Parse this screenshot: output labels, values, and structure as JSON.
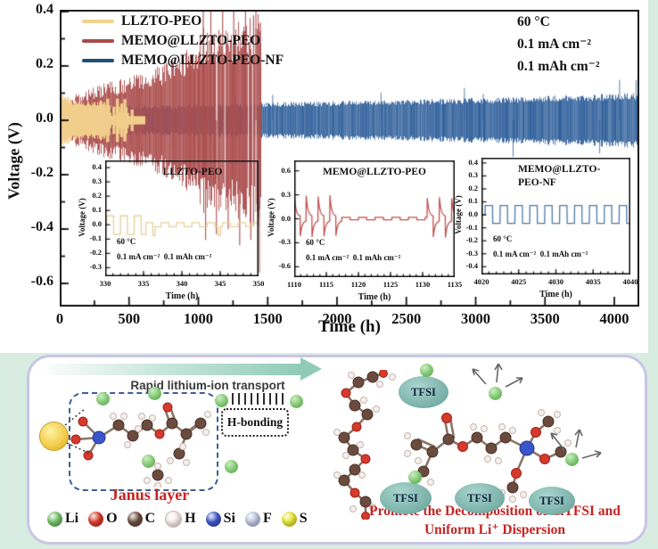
{
  "chart_data": [
    {
      "id": "main",
      "type": "line",
      "title": "",
      "xlabel": "Time (h)",
      "ylabel": "Voltage (V)",
      "xlim": [
        0,
        4180
      ],
      "ylim": [
        -0.685,
        0.407
      ],
      "xticks": [
        0,
        500,
        1000,
        1500,
        2000,
        2500,
        3000,
        3500,
        4000
      ],
      "yticks": [
        0.4,
        0.2,
        0,
        -0.2,
        -0.4,
        -0.6
      ],
      "legend_position": "top-left",
      "grid": false,
      "legend_colors": [
        "#F2D28F",
        "#A94A4A",
        "#1F4E79"
      ],
      "annotations": [
        "60 °C",
        "0.1 mA cm⁻²",
        "0.1 mAh cm⁻²"
      ],
      "series": [
        {
          "name": "LLZTO-PEO",
          "color": "#F1CE8C",
          "range": [
            0,
            615
          ],
          "envelope": [
            [
              0,
              0.095
            ],
            [
              40,
              0.078
            ],
            [
              120,
              0.062
            ],
            [
              220,
              0.06
            ],
            [
              300,
              0.066
            ],
            [
              332,
              0.062
            ],
            [
              336,
              0.016
            ],
            [
              395,
              0.016
            ],
            [
              410,
              0.03
            ],
            [
              465,
              0.03
            ],
            [
              480,
              0.016
            ],
            [
              615,
              0.015
            ]
          ],
          "bars": [
            [
              346,
              0.08
            ],
            [
              354,
              0.055
            ],
            [
              362,
              0.028
            ],
            [
              391,
              0.05
            ],
            [
              416,
              0.08
            ],
            [
              424,
              0.05
            ],
            [
              438,
              0.028
            ],
            [
              448,
              0.062
            ],
            [
              470,
              0.078
            ],
            [
              479,
              0.048
            ],
            [
              488,
              0.028
            ],
            [
              522,
              0.04
            ]
          ]
        },
        {
          "name": "MEMO@LLZTO-PEO",
          "color": "#AC4E4E",
          "range": [
            0,
            1452
          ],
          "envelope": [
            [
              0,
              0.05
            ],
            [
              100,
              0.075
            ],
            [
              200,
              0.09
            ],
            [
              300,
              0.105
            ],
            [
              400,
              0.115
            ],
            [
              500,
              0.125
            ],
            [
              600,
              0.14
            ],
            [
              700,
              0.155
            ],
            [
              800,
              0.17
            ],
            [
              900,
              0.195
            ],
            [
              950,
              0.22
            ],
            [
              1000,
              0.25
            ],
            [
              1040,
              0.27
            ],
            [
              1080,
              0.24
            ],
            [
              1120,
              0.27
            ],
            [
              1160,
              0.26
            ],
            [
              1200,
              0.285
            ],
            [
              1240,
              0.27
            ],
            [
              1300,
              0.3
            ],
            [
              1350,
              0.29
            ],
            [
              1400,
              0.31
            ],
            [
              1452,
              0.33
            ]
          ],
          "spikes": [
            [
              1035,
              0.42
            ],
            [
              1052,
              -0.44
            ],
            [
              1090,
              0.4
            ],
            [
              1130,
              -0.42
            ],
            [
              1175,
              0.43
            ],
            [
              1215,
              -0.4
            ],
            [
              1255,
              0.44
            ],
            [
              1298,
              -0.46
            ],
            [
              1340,
              0.42
            ],
            [
              1378,
              -0.44
            ],
            [
              1415,
              0.4
            ],
            [
              1440,
              -0.56
            ],
            [
              1448,
              0.36
            ]
          ],
          "gaps": [
            [
              1128,
              1136
            ],
            [
              1188,
              1194
            ],
            [
              1358,
              1364
            ],
            [
              1388,
              1394
            ],
            [
              1412,
              1418
            ]
          ]
        },
        {
          "name": "MEMO@LLZTO-PEO-NF",
          "color": "#2F5F9A",
          "range": [
            0,
            4178
          ],
          "envelope": [
            [
              0,
              0.04
            ],
            [
              400,
              0.045
            ],
            [
              800,
              0.05
            ],
            [
              1200,
              0.054
            ],
            [
              1500,
              0.057
            ],
            [
              2000,
              0.062
            ],
            [
              2500,
              0.067
            ],
            [
              3000,
              0.072
            ],
            [
              3500,
              0.079
            ],
            [
              4178,
              0.088
            ]
          ]
        }
      ]
    },
    {
      "id": "inset-llzto-peo",
      "type": "line",
      "title": "LLZTO-PEO",
      "xlabel": "Time (h)",
      "ylabel": "Voltage (V)",
      "xlim": [
        330,
        350
      ],
      "ylim": [
        -0.36,
        0.45
      ],
      "xticks": [
        330,
        335,
        340,
        345,
        350
      ],
      "yticks": [
        0.4,
        0.3,
        0.2,
        0.1,
        0,
        -0.1,
        -0.2,
        -0.3
      ],
      "color": "#E7D099",
      "annotation_lines": [
        "60 °C",
        "0.1 mA cm⁻²  0.1 mAh cm⁻²"
      ],
      "segments": [
        {
          "type": "square",
          "from": 330.2,
          "to": 335.3,
          "period": 1.8,
          "hi": 0.062,
          "lo": -0.068
        },
        {
          "type": "square",
          "from": 335.3,
          "to": 350,
          "period": 2.0,
          "hi": 0.015,
          "lo": -0.014
        },
        {
          "type": "dip",
          "at": [
            336.35,
            344.9
          ],
          "v": -0.075,
          "w": 0.3
        }
      ]
    },
    {
      "id": "inset-memo-llzto-peo",
      "type": "line",
      "title": "MEMO@LLZTO-PEO",
      "xlabel": "Time (h)",
      "ylabel": "Voltage (V)",
      "xlim": [
        1110,
        1135
      ],
      "ylim": [
        -0.73,
        0.73
      ],
      "xticks": [
        1110,
        1115,
        1120,
        1125,
        1130,
        1135
      ],
      "yticks": [
        0.6,
        0.3,
        0,
        -0.3,
        -0.6
      ],
      "color": "#C0504D",
      "annotation_lines": [
        "60 °C",
        "0.1 mA cm⁻²  0.1 mAh cm⁻²"
      ],
      "segments": [
        {
          "type": "decay",
          "from": 1110,
          "to": 1117.4,
          "period": 1.85,
          "peak": 0.3,
          "trough": -0.23
        },
        {
          "type": "square",
          "from": 1117.4,
          "to": 1130.7,
          "period": 2.6,
          "hi": 0.018,
          "lo": -0.012
        },
        {
          "type": "decay",
          "from": 1130.7,
          "to": 1135.01,
          "period": 1.9,
          "peak": 0.28,
          "trough": -0.24
        }
      ]
    },
    {
      "id": "inset-memo-llzto-peo-nf",
      "type": "line",
      "title": "MEMO@LLZTO-PEO-NF",
      "title_lines": [
        "MEMO@LLZTO-",
        "PEO-NF"
      ],
      "xlabel": "Time (h)",
      "ylabel": "Voltage (V)",
      "xlim": [
        4020,
        4040
      ],
      "ylim": [
        -0.46,
        0.44
      ],
      "xticks": [
        4020,
        4025,
        4030,
        4035,
        4040
      ],
      "yticks": [
        0.4,
        0.3,
        0.2,
        0.1,
        0,
        -0.1,
        -0.2,
        -0.3,
        -0.4
      ],
      "color": "#4F7AA5",
      "annotation_lines": [
        "60 °C",
        "0.1 mA cm⁻²  0.1 mAh cm⁻²"
      ],
      "segments": [
        {
          "type": "square",
          "from": 4020.5,
          "to": 4040,
          "period": 2.0,
          "hi": 0.072,
          "lo": -0.066
        }
      ]
    }
  ],
  "diagram": {
    "arrow_label": "Rapid lithium-ion transport",
    "hbonding_label": "H-bonding",
    "janus_label": "Janus layer",
    "tfsi_label": "TFSI",
    "promote_line1": "Promote the Decomposition of LiTFSI  and",
    "promote_line2": "Uniform Li⁺ Dispersion",
    "atom_legend": [
      {
        "symbol": "Li",
        "color": "#6fbf63"
      },
      {
        "symbol": "O",
        "color": "#d63a2c"
      },
      {
        "symbol": "C",
        "color": "#6b4b3e"
      },
      {
        "symbol": "H",
        "color": "#f5ecea"
      },
      {
        "symbol": "Si",
        "color": "#3b55c8"
      },
      {
        "symbol": "F",
        "color": "#b9c3dd"
      },
      {
        "symbol": "S",
        "color": "#e3e431"
      }
    ]
  }
}
